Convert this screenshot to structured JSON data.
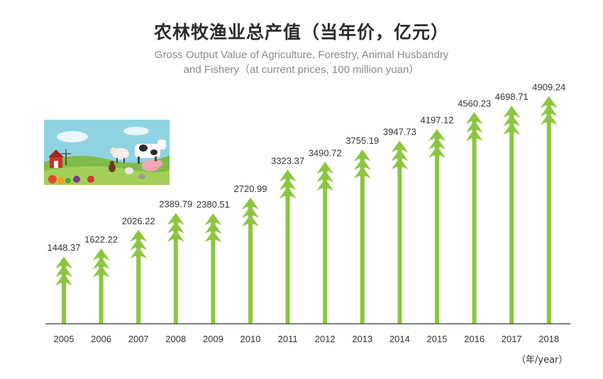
{
  "title_zh": "农林牧渔业总产值（当年价，亿元）",
  "subtitle_line1": "Gross Output Value of Agriculture, Forestry, Animal Husbandry",
  "subtitle_line2": "and Fishery（at current prices, 100 million yuan）",
  "x_unit": "（年/year）",
  "colors": {
    "arrow": "#8cc63f",
    "axis": "#555555",
    "text": "#333333"
  },
  "chart_data": {
    "type": "bar",
    "categories": [
      "2005",
      "2006",
      "2007",
      "2008",
      "2009",
      "2010",
      "2011",
      "2012",
      "2013",
      "2014",
      "2015",
      "2016",
      "2017",
      "2018"
    ],
    "values": [
      1448.37,
      1622.22,
      2026.22,
      2389.79,
      2380.51,
      2720.99,
      3323.37,
      3490.72,
      3755.19,
      3947.73,
      4197.12,
      4560.23,
      4698.71,
      4909.24
    ],
    "labels": [
      "1448.37",
      "1622.22",
      "2026.22",
      "2389.79",
      "2380.51",
      "2720.99",
      "3323.37",
      "3490.72",
      "3755.19",
      "3947.73",
      "4197.12",
      "4560.23",
      "4698.71",
      "4909.24"
    ],
    "title": "农林牧渔业总产值（当年价，亿元）",
    "xlabel": "（年/year）",
    "ylabel": "",
    "mark": "arrow",
    "grid": false
  }
}
